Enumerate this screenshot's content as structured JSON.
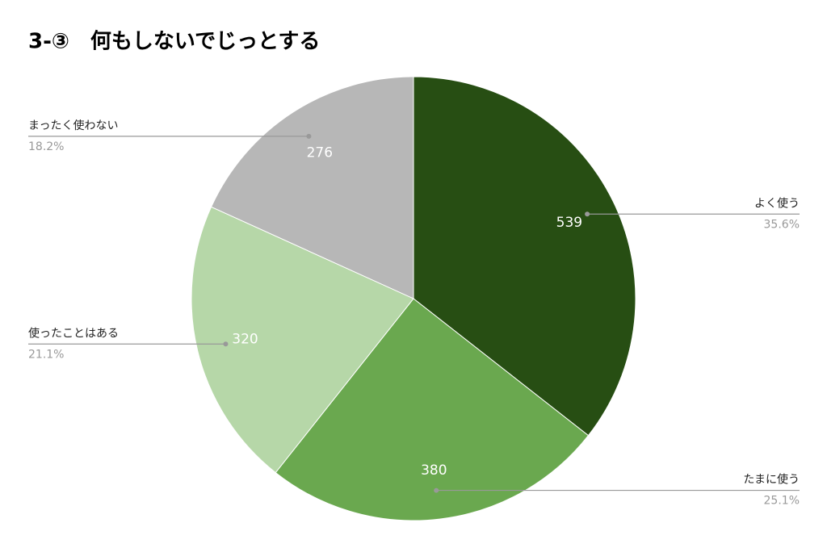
{
  "chart_data": {
    "type": "pie",
    "title": "3-③　何もしないでじっとする",
    "categories": [
      "よく使う",
      "たまに使う",
      "使ったことはある",
      "まったく使わない"
    ],
    "values": [
      539,
      380,
      320,
      276
    ],
    "percentages": [
      35.6,
      25.1,
      21.1,
      18.2
    ],
    "percentage_labels": [
      "35.6%",
      "25.1%",
      "21.1%",
      "18.2%"
    ],
    "colors": [
      "#274e13",
      "#6aa84f",
      "#b6d7a8",
      "#b7b7b7"
    ]
  }
}
